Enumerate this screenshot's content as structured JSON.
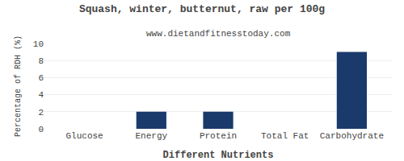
{
  "chart_data": {
    "type": "bar",
    "title": "Squash, winter, butternut, raw per 100g",
    "subtitle": "www.dietandfitnesstoday.com",
    "xlabel": "Different Nutrients",
    "ylabel": "Percentage of RDH (%)",
    "categories": [
      "Glucose",
      "Energy",
      "Protein",
      "Total Fat",
      "Carbohydrate"
    ],
    "values": [
      0,
      2,
      2,
      0,
      9
    ],
    "color": "#1a3a6b",
    "ylim": [
      0,
      10
    ],
    "yticks": [
      0,
      2,
      4,
      6,
      8,
      10
    ],
    "grid": true
  }
}
